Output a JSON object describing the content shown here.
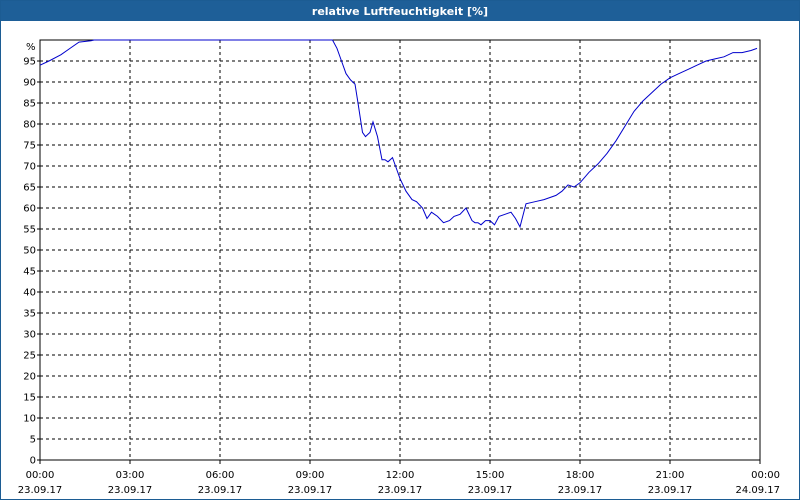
{
  "chart_data": {
    "type": "line",
    "title": "relative Luftfeuchtigkeit [%]",
    "ylabel": "%",
    "ylim": [
      0,
      100
    ],
    "y_ticks": [
      0,
      5,
      10,
      15,
      20,
      25,
      30,
      35,
      40,
      45,
      50,
      55,
      60,
      65,
      70,
      75,
      80,
      85,
      90,
      95
    ],
    "x_range_hours": [
      0,
      24
    ],
    "x_ticks": [
      {
        "hour": 0,
        "time": "00:00",
        "date": "23.09.17"
      },
      {
        "hour": 3,
        "time": "03:00",
        "date": "23.09.17"
      },
      {
        "hour": 6,
        "time": "06:00",
        "date": "23.09.17"
      },
      {
        "hour": 9,
        "time": "09:00",
        "date": "23.09.17"
      },
      {
        "hour": 12,
        "time": "12:00",
        "date": "23.09.17"
      },
      {
        "hour": 15,
        "time": "15:00",
        "date": "23.09.17"
      },
      {
        "hour": 18,
        "time": "18:00",
        "date": "23.09.17"
      },
      {
        "hour": 21,
        "time": "21:00",
        "date": "23.09.17"
      },
      {
        "hour": 24,
        "time": "00:00",
        "date": "24.09.17"
      }
    ],
    "grid": true,
    "line_color": "#0000cc",
    "series": [
      {
        "x": [
          0,
          0.3,
          0.7,
          1.0,
          1.3,
          1.7,
          1.8,
          2.0,
          2.5,
          3.0,
          4.0,
          5.0,
          6.0,
          7.0,
          8.0,
          9.0,
          9.6,
          9.75,
          9.9,
          10.05,
          10.2,
          10.35,
          10.5,
          10.6,
          10.75,
          10.85,
          11.0,
          11.1,
          11.25,
          11.4,
          11.5,
          11.6,
          11.75,
          11.85,
          12.0,
          12.2,
          12.4,
          12.55,
          12.75,
          12.9,
          13.05,
          13.25,
          13.45,
          13.65,
          13.8,
          14.0,
          14.2,
          14.4,
          14.5,
          14.6,
          14.7,
          14.85,
          15.0,
          15.15,
          15.3,
          15.5,
          15.7,
          15.85,
          16.0,
          16.2,
          16.5,
          16.8,
          17.0,
          17.2,
          17.4,
          17.6,
          17.8,
          18.0,
          18.3,
          18.6,
          18.9,
          19.2,
          19.5,
          19.8,
          20.1,
          20.4,
          20.7,
          21.0,
          21.3,
          21.6,
          21.9,
          22.2,
          22.5,
          22.8,
          23.1,
          23.4,
          23.7,
          23.9
        ],
        "y": [
          94,
          95,
          96.5,
          98,
          99.5,
          99.8,
          100,
          100,
          100,
          100,
          100,
          100,
          100,
          100,
          100,
          100,
          100,
          100,
          98,
          95,
          92,
          90.5,
          89.5,
          85,
          78,
          77,
          78,
          80.5,
          77,
          71.5,
          71.5,
          71,
          72,
          70,
          67,
          64,
          62,
          61.5,
          60,
          57.5,
          59,
          58,
          56.5,
          57,
          58,
          58.5,
          60,
          57,
          56.5,
          56.5,
          56,
          57,
          57,
          56,
          58,
          58.5,
          59,
          57.5,
          55.5,
          61,
          61.5,
          62,
          62.5,
          63,
          64,
          65.5,
          65,
          66,
          68.5,
          70.5,
          73,
          76,
          79.5,
          83,
          85.5,
          87.5,
          89.5,
          91,
          92,
          93,
          94,
          95,
          95.5,
          96,
          97,
          97,
          97.5,
          98
        ]
      }
    ]
  }
}
